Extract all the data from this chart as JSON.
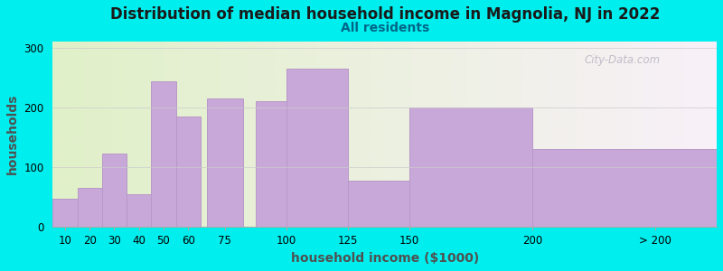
{
  "title": "Distribution of median household income in Magnolia, NJ in 2022",
  "subtitle": "All residents",
  "xlabel": "household income ($1000)",
  "ylabel": "households",
  "background_color": "#00EEEE",
  "bar_color": "#c8a8d8",
  "bar_edge_color": "#b898c8",
  "values": [
    47,
    65,
    123,
    55,
    243,
    185,
    215,
    210,
    265,
    78,
    200,
    130
  ],
  "bar_lefts": [
    10,
    20,
    30,
    40,
    50,
    60,
    75,
    100,
    112.5,
    137.5,
    175,
    237.5
  ],
  "bar_widths": [
    10,
    10,
    10,
    10,
    10,
    10,
    15,
    25,
    25,
    25,
    50,
    75
  ],
  "xlim": [
    5,
    275
  ],
  "ylim": [
    0,
    310
  ],
  "yticks": [
    0,
    100,
    200,
    300
  ],
  "xtick_positions": [
    10,
    20,
    30,
    40,
    50,
    60,
    75,
    100,
    125,
    150,
    200,
    250
  ],
  "xtick_labels": [
    "10",
    "20",
    "30",
    "40",
    "50",
    "60",
    "75",
    "100",
    "125",
    "150",
    "200",
    "> 200"
  ],
  "watermark": "City-Data.com",
  "title_fontsize": 12,
  "subtitle_fontsize": 10,
  "axis_label_fontsize": 10,
  "tick_fontsize": 8.5
}
